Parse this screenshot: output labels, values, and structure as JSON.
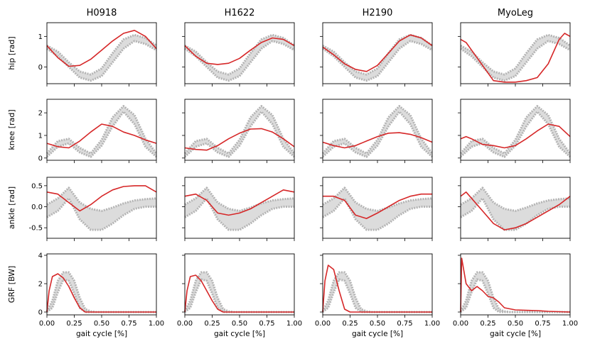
{
  "figure": {
    "columns": [
      "H0918",
      "H1622",
      "H2190",
      "MyoLeg"
    ],
    "xlabel": "gait cycle [%]",
    "x_ticks": [
      "0.00",
      "0.25",
      "0.50",
      "0.75",
      "1.00"
    ],
    "colors": {
      "band_fill": "#dcdcdc",
      "band_edge": "#b4b4b4",
      "sim": "#d62728"
    }
  },
  "chart_data": [
    {
      "type": "line",
      "row": "hip",
      "ylabel": "hip [rad]",
      "xlim": [
        0,
        1
      ],
      "ylim": [
        -0.55,
        1.45
      ],
      "y_ticks": [
        0,
        1
      ],
      "reference_band": {
        "x": [
          0,
          0.1,
          0.2,
          0.3,
          0.4,
          0.5,
          0.6,
          0.7,
          0.8,
          0.9,
          1.0
        ],
        "lower": [
          0.6,
          0.35,
          0.0,
          -0.35,
          -0.45,
          -0.3,
          0.15,
          0.6,
          0.85,
          0.75,
          0.55
        ],
        "upper": [
          0.7,
          0.5,
          0.15,
          -0.15,
          -0.25,
          -0.05,
          0.45,
          0.9,
          1.05,
          0.95,
          0.7
        ]
      },
      "series": [
        {
          "name": "H0918",
          "x": [
            0,
            0.1,
            0.2,
            0.3,
            0.4,
            0.5,
            0.6,
            0.7,
            0.8,
            0.9,
            1.0
          ],
          "values": [
            0.7,
            0.3,
            0.02,
            0.05,
            0.25,
            0.55,
            0.85,
            1.1,
            1.2,
            1.0,
            0.6
          ]
        },
        {
          "name": "H1622",
          "x": [
            0,
            0.1,
            0.2,
            0.3,
            0.4,
            0.5,
            0.6,
            0.7,
            0.8,
            0.9,
            1.0
          ],
          "values": [
            0.7,
            0.35,
            0.12,
            0.08,
            0.12,
            0.28,
            0.55,
            0.8,
            0.95,
            0.9,
            0.7
          ]
        },
        {
          "name": "H2190",
          "x": [
            0,
            0.1,
            0.2,
            0.3,
            0.4,
            0.5,
            0.6,
            0.7,
            0.8,
            0.9,
            1.0
          ],
          "values": [
            0.65,
            0.4,
            0.1,
            -0.08,
            -0.15,
            0.05,
            0.45,
            0.85,
            1.05,
            0.95,
            0.7
          ]
        },
        {
          "name": "MyoLeg",
          "x": [
            0,
            0.05,
            0.1,
            0.2,
            0.3,
            0.4,
            0.5,
            0.6,
            0.7,
            0.8,
            0.9,
            0.95,
            1.0
          ],
          "values": [
            0.9,
            0.8,
            0.55,
            0.05,
            -0.45,
            -0.5,
            -0.5,
            -0.45,
            -0.35,
            0.1,
            0.9,
            1.1,
            1.0
          ]
        }
      ]
    },
    {
      "type": "line",
      "row": "knee",
      "ylabel": "knee [rad]",
      "xlim": [
        0,
        1
      ],
      "ylim": [
        -0.1,
        2.6
      ],
      "y_ticks": [
        0,
        1,
        2
      ],
      "reference_band": {
        "x": [
          0,
          0.1,
          0.2,
          0.3,
          0.4,
          0.5,
          0.6,
          0.7,
          0.8,
          0.9,
          1.0
        ],
        "lower": [
          0.05,
          0.5,
          0.65,
          0.25,
          0.05,
          0.55,
          1.4,
          2.05,
          1.5,
          0.5,
          0.05
        ],
        "upper": [
          0.2,
          0.75,
          0.85,
          0.45,
          0.2,
          0.8,
          1.8,
          2.3,
          1.9,
          0.85,
          0.2
        ]
      },
      "series": [
        {
          "name": "H0918",
          "x": [
            0,
            0.1,
            0.2,
            0.3,
            0.4,
            0.5,
            0.6,
            0.7,
            0.8,
            0.9,
            1.0
          ],
          "values": [
            0.65,
            0.5,
            0.45,
            0.75,
            1.15,
            1.5,
            1.4,
            1.15,
            1.0,
            0.8,
            0.65
          ]
        },
        {
          "name": "H1622",
          "x": [
            0,
            0.1,
            0.2,
            0.3,
            0.4,
            0.5,
            0.6,
            0.7,
            0.8,
            0.9,
            1.0
          ],
          "values": [
            0.45,
            0.38,
            0.35,
            0.55,
            0.85,
            1.1,
            1.28,
            1.3,
            1.15,
            0.85,
            0.5
          ]
        },
        {
          "name": "H2190",
          "x": [
            0,
            0.1,
            0.2,
            0.3,
            0.4,
            0.5,
            0.6,
            0.7,
            0.8,
            0.9,
            1.0
          ],
          "values": [
            0.7,
            0.55,
            0.45,
            0.55,
            0.75,
            0.95,
            1.1,
            1.12,
            1.05,
            0.9,
            0.7
          ]
        },
        {
          "name": "MyoLeg",
          "x": [
            0,
            0.05,
            0.1,
            0.2,
            0.3,
            0.4,
            0.5,
            0.6,
            0.7,
            0.8,
            0.9,
            1.0
          ],
          "values": [
            0.85,
            0.95,
            0.85,
            0.6,
            0.55,
            0.45,
            0.55,
            0.85,
            1.2,
            1.5,
            1.4,
            0.95
          ]
        }
      ]
    },
    {
      "type": "line",
      "row": "ankle",
      "ylabel": "ankle [rad]",
      "xlim": [
        0,
        1
      ],
      "ylim": [
        -0.75,
        0.7
      ],
      "y_ticks": [
        -0.5,
        0.0,
        0.5
      ],
      "reference_band": {
        "x": [
          0,
          0.1,
          0.2,
          0.3,
          0.4,
          0.5,
          0.6,
          0.7,
          0.8,
          0.9,
          1.0
        ],
        "lower": [
          -0.25,
          -0.1,
          0.2,
          -0.3,
          -0.55,
          -0.55,
          -0.4,
          -0.2,
          -0.05,
          0.0,
          0.0
        ],
        "upper": [
          0.05,
          0.2,
          0.45,
          0.1,
          -0.05,
          -0.1,
          -0.02,
          0.08,
          0.15,
          0.18,
          0.2
        ]
      },
      "series": [
        {
          "name": "H0918",
          "x": [
            0,
            0.1,
            0.2,
            0.3,
            0.4,
            0.5,
            0.6,
            0.7,
            0.8,
            0.9,
            1.0
          ],
          "values": [
            0.35,
            0.3,
            0.1,
            -0.1,
            0.05,
            0.25,
            0.4,
            0.48,
            0.5,
            0.5,
            0.35
          ]
        },
        {
          "name": "H1622",
          "x": [
            0,
            0.1,
            0.2,
            0.3,
            0.4,
            0.5,
            0.6,
            0.7,
            0.8,
            0.9,
            1.0
          ],
          "values": [
            0.25,
            0.3,
            0.15,
            -0.15,
            -0.2,
            -0.15,
            -0.05,
            0.1,
            0.25,
            0.4,
            0.35
          ]
        },
        {
          "name": "H2190",
          "x": [
            0,
            0.1,
            0.2,
            0.3,
            0.4,
            0.5,
            0.6,
            0.7,
            0.8,
            0.9,
            1.0
          ],
          "values": [
            0.25,
            0.25,
            0.15,
            -0.2,
            -0.28,
            -0.15,
            0.0,
            0.15,
            0.25,
            0.3,
            0.3
          ]
        },
        {
          "name": "MyoLeg",
          "x": [
            0,
            0.05,
            0.1,
            0.2,
            0.3,
            0.4,
            0.5,
            0.6,
            0.7,
            0.8,
            0.9,
            1.0
          ],
          "values": [
            0.25,
            0.35,
            0.2,
            -0.1,
            -0.4,
            -0.55,
            -0.5,
            -0.4,
            -0.25,
            -0.1,
            0.05,
            0.25
          ]
        }
      ]
    },
    {
      "type": "line",
      "row": "grf",
      "ylabel": "GRF [BW]",
      "xlim": [
        0,
        1
      ],
      "ylim": [
        -0.2,
        4.1
      ],
      "y_ticks": [
        0,
        2,
        4
      ],
      "reference_band": {
        "x": [
          0,
          0.05,
          0.1,
          0.15,
          0.2,
          0.25,
          0.3,
          0.35,
          0.4,
          0.45,
          1.0
        ],
        "lower": [
          0,
          0.3,
          1.4,
          2.3,
          2.2,
          1.3,
          0.3,
          0.0,
          0,
          0,
          0
        ],
        "upper": [
          0.05,
          0.8,
          2.2,
          2.8,
          2.8,
          2.2,
          1.0,
          0.2,
          0.05,
          0,
          0
        ]
      },
      "series": [
        {
          "name": "H0918",
          "x": [
            0,
            0.02,
            0.05,
            0.1,
            0.15,
            0.2,
            0.25,
            0.3,
            0.35,
            0.4,
            1.0
          ],
          "values": [
            0,
            1.5,
            2.5,
            2.7,
            2.4,
            1.8,
            1.0,
            0.3,
            0,
            0,
            0
          ]
        },
        {
          "name": "H1622",
          "x": [
            0,
            0.02,
            0.05,
            0.1,
            0.15,
            0.2,
            0.25,
            0.3,
            0.35,
            1.0
          ],
          "values": [
            0,
            1.5,
            2.5,
            2.6,
            2.2,
            1.5,
            0.8,
            0.2,
            0,
            0
          ]
        },
        {
          "name": "H2190",
          "x": [
            0,
            0.02,
            0.05,
            0.1,
            0.15,
            0.2,
            0.25,
            1.0
          ],
          "values": [
            0,
            2.2,
            3.3,
            3.0,
            1.5,
            0.2,
            0,
            0
          ]
        },
        {
          "name": "MyoLeg",
          "x": [
            0,
            0.01,
            0.05,
            0.1,
            0.15,
            0.2,
            0.25,
            0.3,
            0.35,
            0.4,
            0.5,
            0.6,
            0.7,
            0.8,
            1.0
          ],
          "values": [
            0,
            3.8,
            2.0,
            1.5,
            1.8,
            1.5,
            1.1,
            1.0,
            0.7,
            0.3,
            0.15,
            0.12,
            0.1,
            0.05,
            0
          ]
        }
      ]
    }
  ]
}
